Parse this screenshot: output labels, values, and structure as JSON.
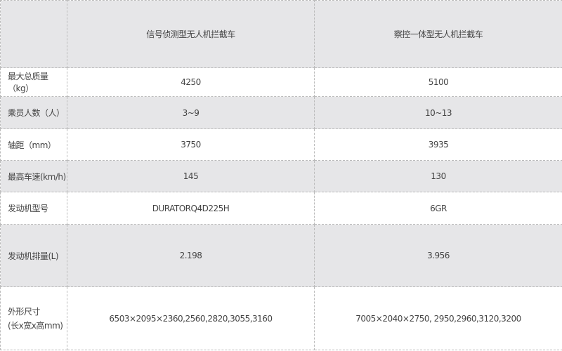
{
  "header": {
    "corner": "",
    "col1": "信号侦测型无人机拦截车",
    "col2": "察控一体型无人机拦截车"
  },
  "rows": [
    {
      "label": "最大总质量（kg）",
      "v1": "4250",
      "v2": "5100"
    },
    {
      "label": "乘员人数（人）",
      "v1": "3~9",
      "v2": "10~13"
    },
    {
      "label": "轴距（mm）",
      "v1": "3750",
      "v2": "3935"
    },
    {
      "label": "最高车速(km/h)",
      "v1": "145",
      "v2": "130"
    },
    {
      "label": "发动机型号",
      "v1": "DURATORQ4D225H",
      "v2": "6GR"
    },
    {
      "label": "发动机排量(L)",
      "v1": "2.198",
      "v2": "3.956"
    },
    {
      "label": "外形尺寸\n(长x宽x高mm)",
      "v1": "6503×2095×2360,2560,2820,3055,3160",
      "v2": "7005×2040×2750, 2950,2960,3120,3200"
    }
  ]
}
